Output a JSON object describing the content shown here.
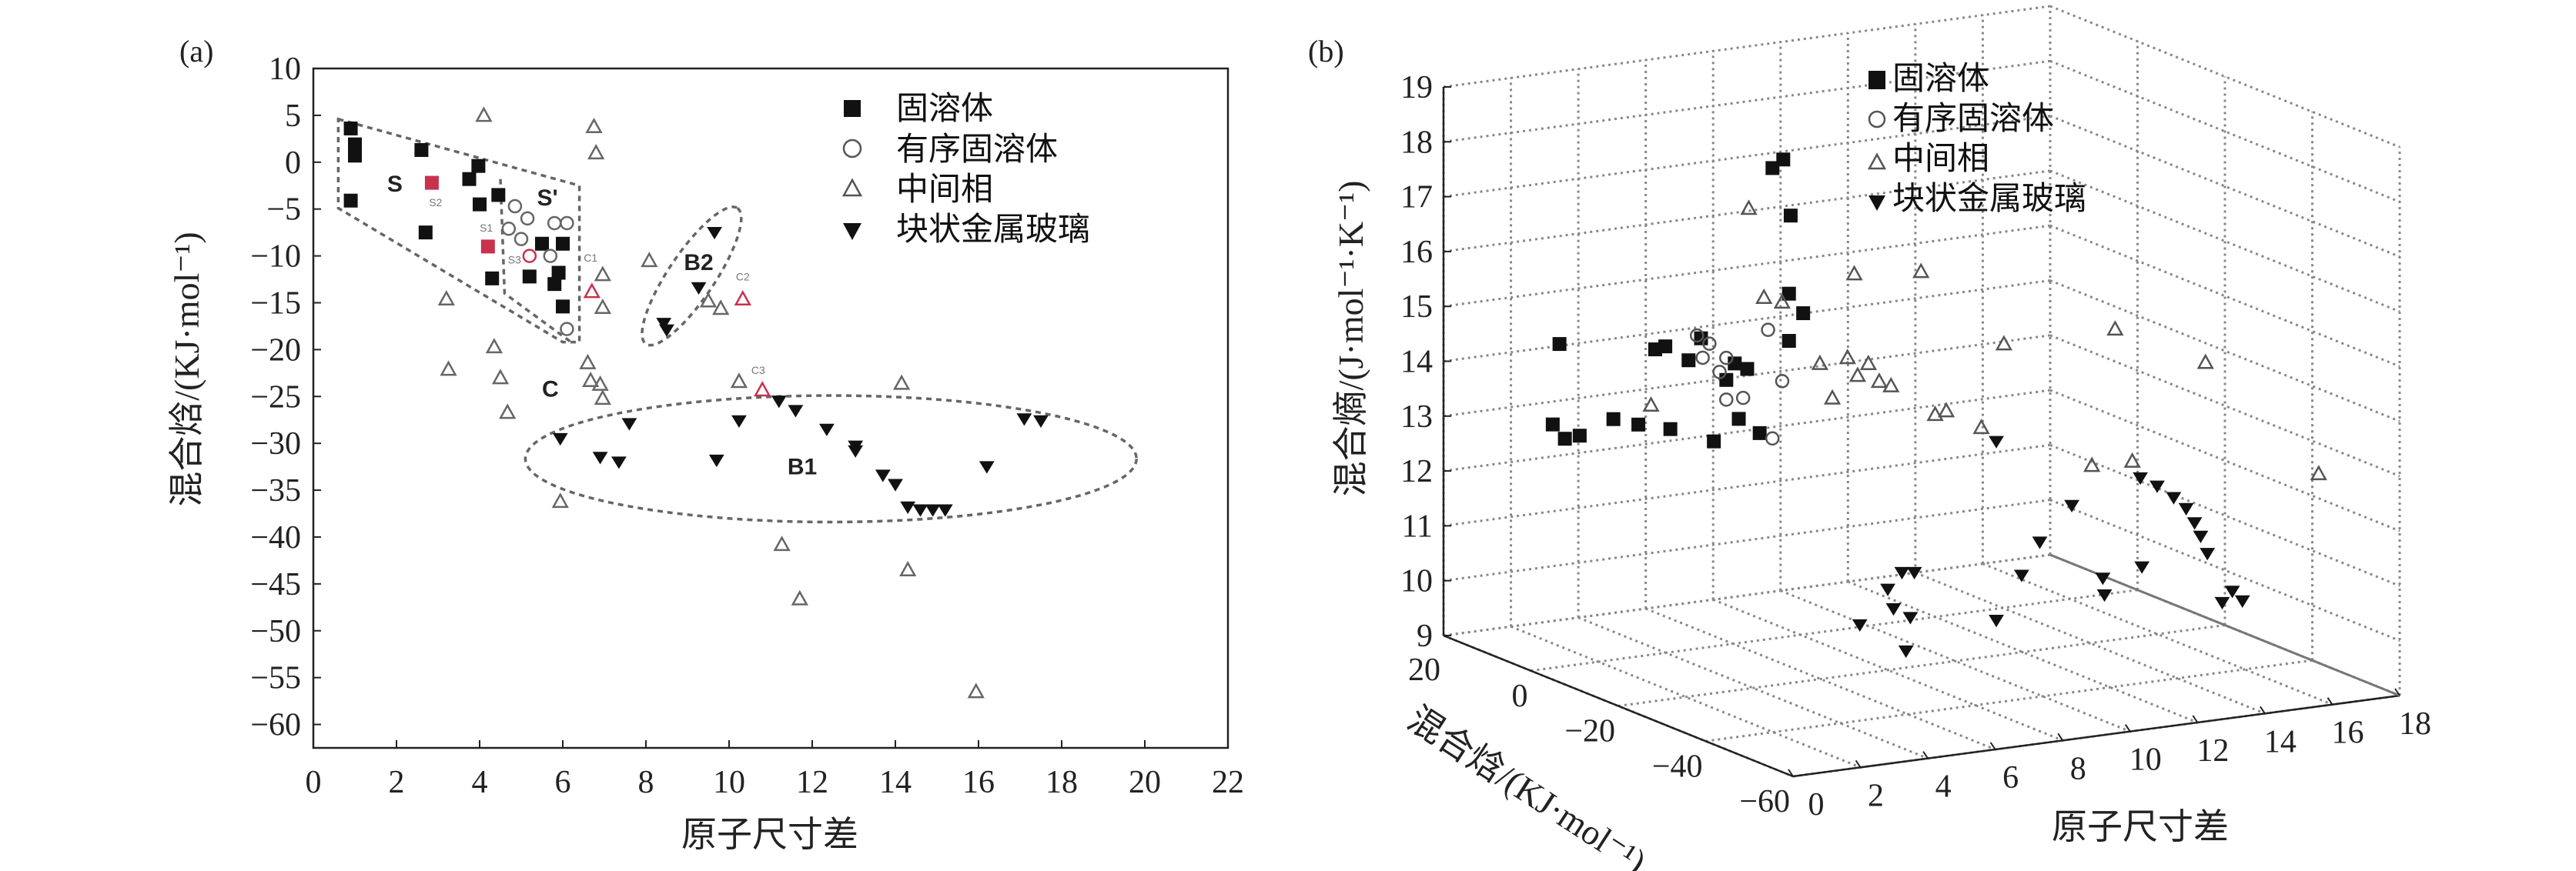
{
  "chart_data": [
    {
      "panel_label": "(a)",
      "type": "scatter",
      "xlabel": "原子尺寸差",
      "ylabel": "混合焓/(KJ·mol⁻¹)",
      "xlim": [
        0,
        22
      ],
      "ylim": [
        -62.5,
        10
      ],
      "xticks": [
        0,
        2,
        4,
        6,
        8,
        10,
        12,
        14,
        16,
        18,
        20,
        22
      ],
      "yticks": [
        10,
        5,
        0,
        -5,
        -10,
        -15,
        -20,
        -25,
        -30,
        -35,
        -40,
        -45,
        -50,
        -55,
        -60
      ],
      "grid": false,
      "legend_position": "top-right",
      "highlight_color": "#c8324c",
      "series": [
        {
          "name": "固溶体",
          "marker": "filled-square",
          "color": "#111111",
          "points": [
            [
              0.9,
              3.6
            ],
            [
              1.0,
              1.9
            ],
            [
              1.0,
              0.7
            ],
            [
              0.9,
              -4.1
            ],
            [
              2.6,
              1.3
            ],
            [
              2.7,
              -7.5
            ],
            [
              3.97,
              -0.4
            ],
            [
              3.75,
              -1.8
            ],
            [
              4.0,
              -4.5
            ],
            [
              4.45,
              -3.5
            ],
            [
              4.3,
              -12.4
            ],
            [
              5.2,
              -12.2
            ],
            [
              5.5,
              -8.7
            ],
            [
              6.0,
              -8.7
            ],
            [
              5.8,
              -13.0
            ],
            [
              6.0,
              -15.4
            ],
            [
              5.9,
              -11.8
            ],
            [
              2.85,
              -2.2,
              "h"
            ],
            [
              4.2,
              -9.0,
              "h"
            ]
          ]
        },
        {
          "name": "有序固溶体",
          "marker": "open-circle",
          "color": "#666666",
          "points": [
            [
              4.85,
              -4.7
            ],
            [
              5.15,
              -6.0
            ],
            [
              4.7,
              -7.1
            ],
            [
              5.8,
              -6.5
            ],
            [
              6.1,
              -6.5
            ],
            [
              5.0,
              -8.2
            ],
            [
              5.7,
              -10.0
            ],
            [
              6.1,
              -17.8
            ],
            [
              5.2,
              -10.0,
              "h"
            ]
          ]
        },
        {
          "name": "中间相",
          "marker": "open-triangle",
          "color": "#666666",
          "points": [
            [
              4.1,
              5.0
            ],
            [
              6.75,
              3.8
            ],
            [
              6.8,
              1.0
            ],
            [
              3.2,
              -14.6
            ],
            [
              4.35,
              -19.7
            ],
            [
              3.25,
              -22.1
            ],
            [
              4.5,
              -23.0
            ],
            [
              4.67,
              -26.7
            ],
            [
              6.6,
              -21.4
            ],
            [
              6.67,
              -23.3
            ],
            [
              6.9,
              -23.7
            ],
            [
              6.96,
              -25.2
            ],
            [
              6.7,
              -13.8,
              "h"
            ],
            [
              6.96,
              -12.0
            ],
            [
              6.96,
              -15.5
            ],
            [
              8.08,
              -10.5
            ],
            [
              9.5,
              -14.8
            ],
            [
              9.8,
              -15.6
            ],
            [
              10.33,
              -14.6,
              "h"
            ],
            [
              10.24,
              -23.4
            ],
            [
              10.8,
              -24.3,
              "h"
            ],
            [
              14.15,
              -23.6
            ],
            [
              5.94,
              -36.2
            ],
            [
              11.27,
              -40.8
            ],
            [
              11.7,
              -46.6
            ],
            [
              14.3,
              -43.5
            ],
            [
              15.94,
              -56.5
            ]
          ]
        },
        {
          "name": "块状金属玻璃",
          "marker": "filled-down-triangle",
          "color": "#111111",
          "points": [
            [
              9.65,
              -7.5
            ],
            [
              9.27,
              -13.4
            ],
            [
              8.43,
              -17.2
            ],
            [
              8.5,
              -17.9
            ],
            [
              5.94,
              -29.5
            ],
            [
              6.9,
              -31.5
            ],
            [
              7.35,
              -32.0
            ],
            [
              7.6,
              -27.9
            ],
            [
              9.7,
              -31.8
            ],
            [
              10.24,
              -27.6
            ],
            [
              11.2,
              -25.5
            ],
            [
              11.6,
              -26.5
            ],
            [
              12.35,
              -28.5
            ],
            [
              13.04,
              -30.3
            ],
            [
              13.04,
              -30.8
            ],
            [
              13.7,
              -33.4
            ],
            [
              14.0,
              -34.4
            ],
            [
              14.3,
              -36.8
            ],
            [
              14.6,
              -37.1
            ],
            [
              14.9,
              -37.1
            ],
            [
              15.2,
              -37.1
            ],
            [
              16.2,
              -32.5
            ],
            [
              17.1,
              -27.4
            ],
            [
              17.5,
              -27.6
            ]
          ]
        }
      ],
      "annotations": [
        {
          "text": "S",
          "x": 1.96,
          "y": -2.25
        },
        {
          "text": "S'",
          "x": 5.63,
          "y": -3.7
        },
        {
          "text": "C",
          "x": 5.7,
          "y": -24.1
        },
        {
          "text": "B2",
          "x": 9.27,
          "y": -10.6
        },
        {
          "text": "B1",
          "x": 11.76,
          "y": -32.4
        }
      ],
      "small_annotations": [
        {
          "text": "S1",
          "x": 4.16,
          "y": -7.0
        },
        {
          "text": "S2",
          "x": 2.94,
          "y": -4.3
        },
        {
          "text": "S3",
          "x": 4.84,
          "y": -10.4
        },
        {
          "text": "C1",
          "x": 6.67,
          "y": -10.2
        },
        {
          "text": "C2",
          "x": 10.33,
          "y": -12.2
        },
        {
          "text": "C3",
          "x": 10.7,
          "y": -22.2
        }
      ]
    },
    {
      "panel_label": "(b)",
      "type": "scatter3d",
      "xlabel": "原子尺寸差",
      "ylabel": "混合焓/(KJ·mol⁻¹)",
      "zlabel": "混合熵/(J·mol⁻¹·K⁻¹)",
      "xlim": [
        0,
        18
      ],
      "ylim": [
        -60,
        20
      ],
      "zlim": [
        9,
        19
      ],
      "xticks": [
        0,
        2,
        4,
        6,
        8,
        10,
        12,
        14,
        16,
        18
      ],
      "yticks": [
        20,
        0,
        -20,
        -40,
        -60
      ],
      "zticks": [
        9,
        10,
        11,
        12,
        13,
        14,
        15,
        16,
        17,
        18,
        19
      ],
      "grid": true,
      "legend_position": "top-center",
      "series": [
        {
          "name": "固溶体",
          "marker": "filled-square",
          "color": "#111111",
          "points": [
            [
              0.2,
              -5,
              15.1
            ],
            [
              0,
              -5,
              13.65
            ],
            [
              0.36,
              -5,
              13.36
            ],
            [
              0.8,
              -5,
              13.38
            ],
            [
              1.8,
              -5,
              13.6
            ],
            [
              2.54,
              -5,
              13.44
            ],
            [
              3.04,
              -5,
              14.77
            ],
            [
              3.34,
              -5,
              14.8
            ],
            [
              3.49,
              -5,
              13.28
            ],
            [
              4.03,
              -5,
              14.49
            ],
            [
              4.4,
              -5,
              14.86
            ],
            [
              4.78,
              -5,
              12.95
            ],
            [
              5.15,
              -5,
              14.04
            ],
            [
              5.4,
              -5,
              14.32
            ],
            [
              5.52,
              -5,
              13.3
            ],
            [
              5.77,
              -5,
              14.19
            ],
            [
              6.14,
              -5,
              12.99
            ],
            [
              6.52,
              -5,
              17.79
            ],
            [
              6.84,
              -5,
              17.92
            ],
            [
              7.06,
              -5,
              16.88
            ],
            [
              7.01,
              -5,
              15.46
            ],
            [
              7.43,
              -5,
              15.07
            ],
            [
              7.01,
              -5,
              14.6
            ]
          ]
        },
        {
          "name": "有序固溶体",
          "marker": "open-circle",
          "color": "#555555",
          "points": [
            [
              3.89,
              -8,
              15.05
            ],
            [
              4.26,
              -8,
              14.87
            ],
            [
              4.76,
              -8,
              14.57
            ],
            [
              4.06,
              -8,
              14.63
            ],
            [
              4.76,
              -8,
              13.81
            ],
            [
              5.26,
              -8,
              13.8
            ],
            [
              6.42,
              -8,
              14.01
            ],
            [
              6.0,
              -8,
              14.98
            ],
            [
              6.13,
              -8,
              12.99
            ],
            [
              4.56,
              -8,
              14.33
            ]
          ]
        },
        {
          "name": "中间相",
          "marker": "open-triangle",
          "color": "#555555",
          "points": [
            [
              4.52,
              -15,
              17.54
            ],
            [
              1.62,
              -15,
              14.19
            ],
            [
              4.97,
              -15,
              15.88
            ],
            [
              5.51,
              -15,
              15.75
            ],
            [
              6.63,
              -15,
              14.54
            ],
            [
              7.0,
              -15,
              13.88
            ],
            [
              7.45,
              -15,
              14.58
            ],
            [
              7.65,
              -15,
              16.09
            ],
            [
              7.75,
              -15,
              14.23
            ],
            [
              8.07,
              -15,
              14.42
            ],
            [
              8.39,
              -15,
              14.07
            ],
            [
              8.74,
              -15,
              13.96
            ],
            [
              9.63,
              -15,
              15.97
            ],
            [
              10.05,
              -15,
              13.33
            ],
            [
              10.38,
              -15,
              13.37
            ],
            [
              11.42,
              -15,
              12.98
            ],
            [
              12.09,
              -15,
              14.45
            ],
            [
              14.7,
              -15,
              12.02
            ],
            [
              15.39,
              -15,
              14.45
            ],
            [
              15.9,
              -15,
              12.0
            ],
            [
              14.83,
              -40,
              14.69
            ],
            [
              17.54,
              -45,
              12.6
            ]
          ]
        },
        {
          "name": "块状金属玻璃",
          "marker": "filled-down-triangle",
          "color": "#111111",
          "points": [
            [
              5.87,
              -30,
              10.32
            ],
            [
              6.7,
              -30,
              10.9
            ],
            [
              6.87,
              -30,
              10.53
            ],
            [
              7.12,
              -30,
              11.17
            ],
            [
              7.49,
              -30,
              11.14
            ],
            [
              7.37,
              -30,
              10.33
            ],
            [
              7.24,
              -30,
              9.73
            ],
            [
              9.92,
              -30,
              13.33
            ],
            [
              9.92,
              -30,
              10.07
            ],
            [
              10.67,
              -30,
              10.83
            ],
            [
              11.21,
              -30,
              11.39
            ],
            [
              12.16,
              -30,
              11.98
            ],
            [
              13.08,
              -30,
              10.58
            ],
            [
              13.13,
              -30,
              10.27
            ],
            [
              14.24,
              -30,
              10.69
            ],
            [
              11.6,
              -50,
              13.17
            ],
            [
              12.1,
              -50,
              12.98
            ],
            [
              12.59,
              -50,
              12.73
            ],
            [
              12.96,
              -50,
              12.5
            ],
            [
              13.21,
              -50,
              12.22
            ],
            [
              13.39,
              -50,
              11.96
            ],
            [
              13.59,
              -50,
              11.63
            ],
            [
              14.03,
              -50,
              10.7
            ],
            [
              14.33,
              -50,
              10.88
            ],
            [
              14.63,
              -50,
              10.68
            ]
          ]
        }
      ]
    }
  ]
}
